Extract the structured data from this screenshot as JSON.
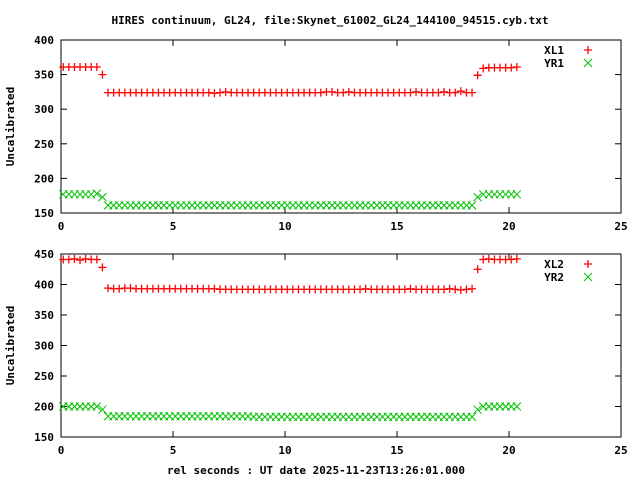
{
  "title": "HIRES continuum, GL24, file:Skynet_61002_GL24_144100_94515.cyb.txt",
  "colors": {
    "red": "#ff0000",
    "green": "#00c000",
    "axis": "#000000"
  },
  "chart_data": [
    {
      "type": "scatter",
      "ylabel": "Uncalibrated",
      "xlabel": "",
      "xlim": [
        0,
        25
      ],
      "ylim": [
        150,
        400
      ],
      "xticks": [
        "0",
        "5",
        "10",
        "15",
        "20",
        "25"
      ],
      "yticks": [
        "150",
        "200",
        "250",
        "300",
        "350",
        "400"
      ],
      "legend_position": "top-right",
      "x_start": 0.1,
      "x_step": 0.25,
      "series": [
        {
          "name": "XL1",
          "marker": "plus",
          "color": "#ff0000",
          "values": [
            361,
            361,
            361,
            361,
            361,
            361,
            361,
            350,
            324,
            324,
            324,
            324,
            324,
            324,
            324,
            324,
            324,
            324,
            324,
            324,
            324,
            324,
            324,
            324,
            324,
            324,
            324,
            323,
            324,
            325,
            324,
            324,
            324,
            324,
            324,
            324,
            324,
            324,
            324,
            324,
            324,
            324,
            324,
            324,
            324,
            324,
            324,
            325,
            325,
            324,
            324,
            325,
            324,
            324,
            324,
            324,
            324,
            324,
            324,
            324,
            324,
            324,
            324,
            325,
            324,
            324,
            324,
            324,
            325,
            324,
            324,
            326,
            324,
            324,
            349,
            359,
            360,
            360,
            360,
            360,
            360,
            361
          ]
        },
        {
          "name": "YR1",
          "marker": "cross",
          "color": "#00c000",
          "values": [
            177,
            177,
            177,
            177,
            177,
            177,
            178,
            173,
            161,
            161,
            161,
            161,
            161,
            161,
            161,
            161,
            161,
            161,
            161,
            161,
            161,
            161,
            161,
            161,
            161,
            161,
            161,
            161,
            161,
            161,
            161,
            161,
            161,
            161,
            161,
            161,
            161,
            161,
            161,
            161,
            161,
            161,
            161,
            161,
            161,
            161,
            161,
            161,
            161,
            161,
            161,
            161,
            161,
            161,
            161,
            161,
            161,
            161,
            161,
            161,
            161,
            161,
            161,
            161,
            161,
            161,
            161,
            161,
            161,
            161,
            161,
            161,
            161,
            161,
            173,
            177,
            177,
            177,
            177,
            177,
            177,
            177
          ]
        }
      ]
    },
    {
      "type": "scatter",
      "ylabel": "Uncalibrated",
      "xlabel": "rel seconds : UT date 2025-11-23T13:26:01.000",
      "xlim": [
        0,
        25
      ],
      "ylim": [
        150,
        450
      ],
      "xticks": [
        "0",
        "5",
        "10",
        "15",
        "20",
        "25"
      ],
      "yticks": [
        "150",
        "200",
        "250",
        "300",
        "350",
        "400",
        "450"
      ],
      "legend_position": "top-right",
      "x_start": 0.1,
      "x_step": 0.25,
      "series": [
        {
          "name": "XL2",
          "marker": "plus",
          "color": "#ff0000",
          "values": [
            441,
            441,
            442,
            440,
            442,
            441,
            441,
            428,
            394,
            393,
            393,
            394,
            394,
            393,
            393,
            393,
            393,
            393,
            393,
            393,
            393,
            393,
            393,
            393,
            393,
            393,
            393,
            393,
            392,
            392,
            392,
            392,
            392,
            392,
            392,
            392,
            392,
            392,
            392,
            392,
            392,
            392,
            392,
            392,
            392,
            392,
            392,
            392,
            392,
            392,
            392,
            392,
            392,
            392,
            393,
            392,
            392,
            392,
            392,
            392,
            392,
            392,
            393,
            392,
            392,
            392,
            392,
            392,
            392,
            393,
            392,
            391,
            392,
            393,
            425,
            441,
            442,
            441,
            441,
            441,
            441,
            442
          ]
        },
        {
          "name": "YR2",
          "marker": "cross",
          "color": "#00c000",
          "values": [
            200,
            200,
            200,
            200,
            200,
            200,
            200,
            195,
            184,
            184,
            184,
            184,
            184,
            184,
            184,
            184,
            184,
            184,
            184,
            184,
            184,
            184,
            184,
            184,
            184,
            184,
            184,
            184,
            184,
            184,
            184,
            184,
            184,
            184,
            183,
            183,
            183,
            183,
            183,
            183,
            183,
            183,
            183,
            183,
            183,
            183,
            183,
            183,
            183,
            183,
            183,
            183,
            183,
            183,
            183,
            183,
            183,
            183,
            183,
            183,
            183,
            183,
            183,
            183,
            183,
            183,
            183,
            183,
            183,
            183,
            183,
            183,
            183,
            183,
            195,
            200,
            200,
            200,
            200,
            200,
            200,
            200
          ]
        }
      ]
    }
  ]
}
